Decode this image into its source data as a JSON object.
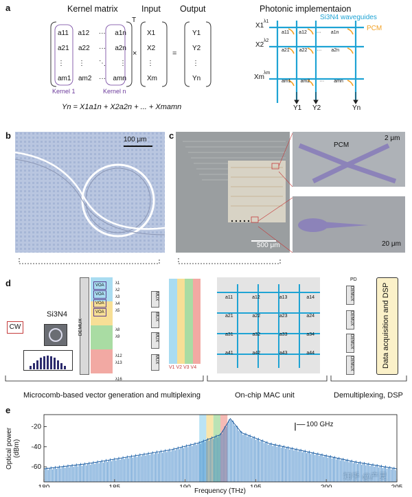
{
  "panel_a": {
    "letter": "a",
    "kernel_title": "Kernel matrix",
    "transpose_mark": "T",
    "input_title": "Input",
    "output_title": "Output",
    "photonic_title": "Photonic implementaion",
    "waveguide_label": "Si3N4 waveguides",
    "pcm_label": "PCM",
    "kernel1_label": "Kernel 1",
    "kerneln_label": "Kernel n",
    "equation": "Yn = X1a1n + X2a2n + ... + Xmamn",
    "times": "×",
    "equals": "=",
    "matrix_entries": [
      [
        "a11",
        "a12",
        "···",
        "a1n"
      ],
      [
        "a21",
        "a22",
        "···",
        "a2n"
      ],
      [
        "⋮",
        "⋮",
        "⋱",
        "⋮"
      ],
      [
        "am1",
        "am2",
        "···",
        "amn"
      ]
    ],
    "inputs": [
      "X1",
      "X2",
      "⋮",
      "Xm"
    ],
    "outputs": [
      "Y1",
      "Y2",
      "⋮",
      "Yn"
    ],
    "photonic_inputs": [
      "X1",
      "X2",
      "Xm"
    ],
    "photonic_lambdas": [
      "λ1",
      "λ2",
      "λm"
    ],
    "photonic_outputs": [
      "Y1",
      "Y2",
      "Yn"
    ],
    "photonic_cells": [
      [
        "a11",
        "a12",
        "···",
        "a1n"
      ],
      [
        "a21",
        "a22",
        "···",
        "a2n"
      ],
      [
        "am1",
        "am2",
        "···",
        "amn"
      ]
    ]
  },
  "panel_b": {
    "letter": "b",
    "scale": "100 μm"
  },
  "panel_c": {
    "letter": "c",
    "scale_main": "500 μm",
    "pcm_label": "PCM",
    "scale_top": "2 μm",
    "scale_bottom": "20 μm"
  },
  "panel_d": {
    "letter": "d",
    "cw": "CW",
    "si3n4": "Si3N4",
    "demux": "DEMUX",
    "mux": "MUX",
    "voa": "VOA",
    "pd": "PD",
    "dsp_box": "Data acquisition and DSP",
    "lambda_labels": [
      "λ1",
      "λ2",
      "λ3",
      "λ4",
      "λ5",
      "λ8",
      "λ9",
      "λ12",
      "λ13",
      "λ16"
    ],
    "mac_cells": [
      [
        "a11",
        "a12",
        "a13",
        "a14"
      ],
      [
        "a21",
        "a22",
        "a23",
        "a24"
      ],
      [
        "a31",
        "a32",
        "a33",
        "a34"
      ],
      [
        "a41",
        "a42",
        "a43",
        "a44"
      ]
    ],
    "v_labels": "V1 V2 V3 V4",
    "section_labels": [
      "Microcomb-based vector generation and multiplexing",
      "On-chip MAC unit",
      "Demultiplexing, DSP"
    ]
  },
  "panel_e": {
    "letter": "e",
    "ylabel": "Optical power (dBm)",
    "xlabel": "Frequency (THz)",
    "annotation": "100 GHz",
    "watermark": "知乎 @产灵"
  },
  "chart_data": {
    "type": "line",
    "xlabel": "Frequency (THz)",
    "ylabel": "Optical power (dBm)",
    "xlim": [
      180,
      205
    ],
    "ylim": [
      -75,
      -8
    ],
    "xticks": [
      180,
      185,
      190,
      195,
      200,
      205
    ],
    "yticks": [
      -20,
      -40,
      -60
    ],
    "comb_spacing_thz": 0.1,
    "pump_thz": 193.2,
    "envelope": [
      {
        "x": 180,
        "y": -62
      },
      {
        "x": 183,
        "y": -57
      },
      {
        "x": 186,
        "y": -50
      },
      {
        "x": 189,
        "y": -43
      },
      {
        "x": 191,
        "y": -36
      },
      {
        "x": 192.5,
        "y": -28
      },
      {
        "x": 193.2,
        "y": -12
      },
      {
        "x": 194,
        "y": -26
      },
      {
        "x": 196,
        "y": -37
      },
      {
        "x": 199,
        "y": -46
      },
      {
        "x": 202,
        "y": -55
      },
      {
        "x": 205,
        "y": -62
      }
    ],
    "highlight_bands": [
      {
        "x": [
          191.0,
          191.5
        ],
        "color": "#a9dcf1"
      },
      {
        "x": [
          191.5,
          192.0
        ],
        "color": "#f7df96"
      },
      {
        "x": [
          192.0,
          192.5
        ],
        "color": "#a9dca3"
      },
      {
        "x": [
          192.5,
          193.0
        ],
        "color": "#f2a9a3"
      }
    ],
    "series_color": "#2a78c2"
  },
  "colors": {
    "accent_teal": "#1ea3d4",
    "pcm_orange": "#f2a023",
    "kernel_purple": "#6b3a9b",
    "band_blue": "#a9dcf1",
    "band_yellow": "#f7df96",
    "band_green": "#a9dca3",
    "band_red": "#f2a9a3"
  }
}
